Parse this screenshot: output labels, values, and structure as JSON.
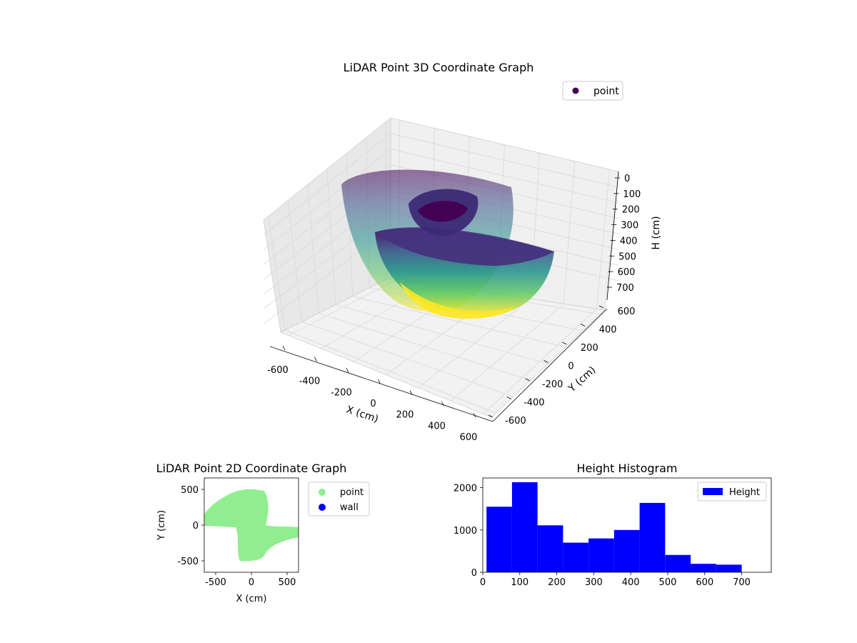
{
  "chart_data": [
    {
      "type": "scatter",
      "projection": "3d",
      "title": "LiDAR Point 3D Coordinate Graph",
      "xlabel": "X (cm)",
      "ylabel": "Y (cm)",
      "zlabel": "H (cm)",
      "xticks": [
        -600,
        -400,
        -200,
        0,
        200,
        400,
        600
      ],
      "yticks": [
        -600,
        -400,
        -200,
        0,
        200,
        400,
        600
      ],
      "zticks": [
        0,
        100,
        200,
        300,
        400,
        500,
        600,
        700
      ],
      "xlim": [
        -650,
        650
      ],
      "ylim": [
        -650,
        650
      ],
      "zlim": [
        750,
        0
      ],
      "z_axis_inverted": true,
      "colormap": "viridis",
      "grid": true,
      "legend": {
        "position": "upper-right",
        "entries": [
          {
            "label": "point",
            "color": "#440154"
          }
        ]
      }
    },
    {
      "type": "scatter",
      "title": "LiDAR Point 2D Coordinate Graph",
      "xlabel": "X (cm)",
      "ylabel": "Y (cm)",
      "xticks": [
        -500,
        0,
        500
      ],
      "yticks": [
        -500,
        0,
        500
      ],
      "xlim": [
        -660,
        660
      ],
      "ylim": [
        -660,
        660
      ],
      "series": [
        {
          "name": "point",
          "color": "#90ee90"
        },
        {
          "name": "wall",
          "color": "#0000ff"
        }
      ],
      "legend": {
        "position": "outside-right"
      }
    },
    {
      "type": "bar",
      "subtype": "histogram",
      "title": "Height Histogram",
      "xticks": [
        0,
        100,
        200,
        300,
        400,
        500,
        600,
        700
      ],
      "yticks": [
        0,
        1000,
        2000
      ],
      "xlim": [
        0,
        780
      ],
      "ylim": [
        0,
        2230
      ],
      "bin_edges": [
        10,
        79,
        148,
        217,
        286,
        355,
        424,
        493,
        562,
        631,
        700
      ],
      "values": [
        1550,
        2130,
        1110,
        700,
        800,
        1000,
        1640,
        410,
        200,
        180
      ],
      "color": "#0000ff",
      "series": [
        {
          "name": "Height",
          "color": "#0000ff"
        }
      ],
      "legend": {
        "position": "upper-right"
      }
    }
  ]
}
